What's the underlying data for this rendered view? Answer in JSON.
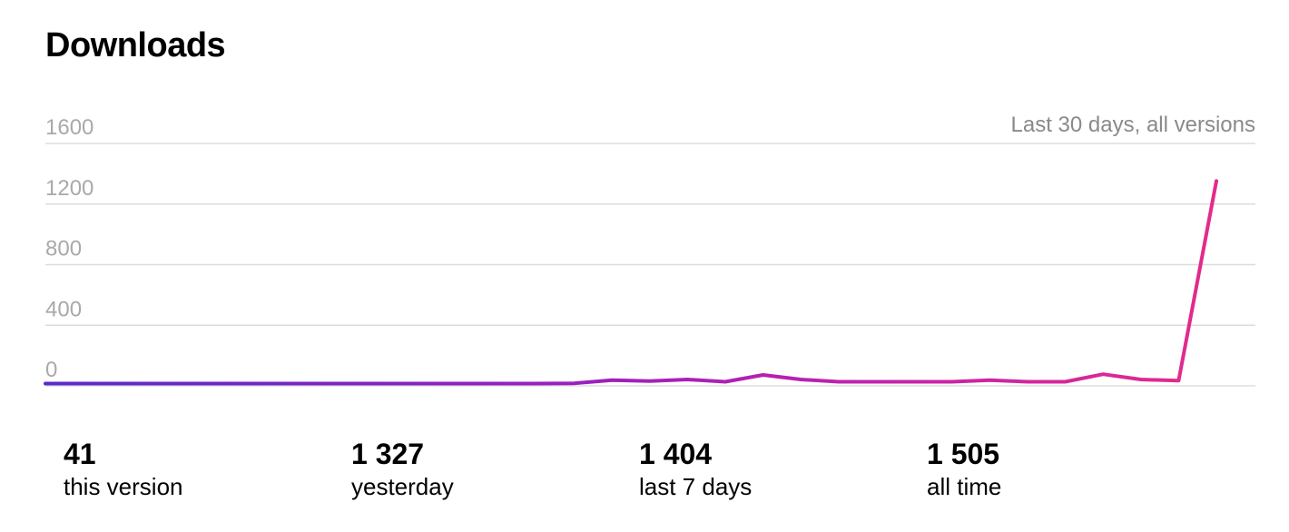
{
  "title": "Downloads",
  "chart_data": {
    "type": "line",
    "period_label": "Last 30 days, all versions",
    "ylim": [
      0,
      1600
    ],
    "y_ticks": [
      "0",
      "400",
      "800",
      "1200",
      "1600"
    ],
    "grid": true,
    "x_labels_shown": false,
    "values": [
      3,
      3,
      3,
      3,
      3,
      3,
      3,
      3,
      3,
      3,
      3,
      3,
      3,
      3,
      5,
      25,
      20,
      30,
      15,
      60,
      30,
      15,
      15,
      15,
      15,
      25,
      15,
      15,
      65,
      30,
      22,
      1340
    ],
    "gradient": [
      "#5a2ac8",
      "#9b1fbf",
      "#c822a8",
      "#e42b8a"
    ]
  },
  "stats": [
    {
      "value": "41",
      "label": "this version"
    },
    {
      "value": "1 327",
      "label": "yesterday"
    },
    {
      "value": "1 404",
      "label": "last 7 days"
    },
    {
      "value": "1 505",
      "label": "all time"
    }
  ]
}
